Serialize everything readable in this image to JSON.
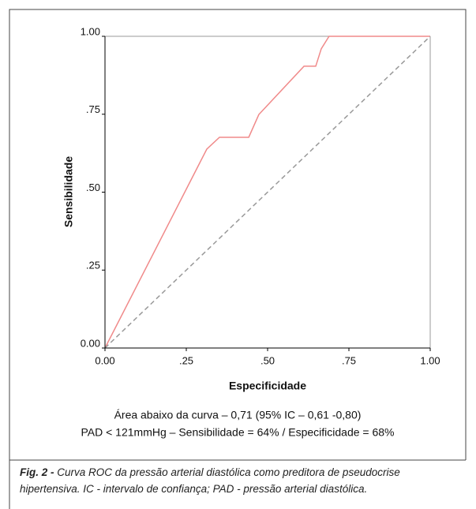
{
  "chart_data": {
    "type": "line",
    "x_label": "Especificidade",
    "y_label": "Sensibilidade",
    "annotations": [
      "Área abaixo da curva – 0,71 (95% IC – 0,61 -0,80)",
      "PAD < 121mmHg – Sensibilidade = 64% / Especificidade = 68%"
    ],
    "series": [
      {
        "color": "#f08a8a",
        "dashed": false,
        "x": [
          0,
          0.313,
          0.352,
          0.442,
          0.473,
          0.612,
          0.648,
          0.665,
          0.689,
          1
        ],
        "values": [
          0,
          0.638,
          0.676,
          0.676,
          0.749,
          0.904,
          0.904,
          0.96,
          1,
          1
        ]
      },
      {
        "color": "#999999",
        "dashed": true,
        "x": [
          0,
          1
        ],
        "values": [
          0,
          1
        ]
      }
    ],
    "xlim": [
      0,
      1
    ],
    "ylim": [
      0,
      1
    ],
    "xticks": [
      {
        "value": 0,
        "label": "0.00"
      },
      {
        "value": 0.25,
        "label": ".25"
      },
      {
        "value": 0.5,
        "label": ".50"
      },
      {
        "value": 0.75,
        "label": ".75"
      },
      {
        "value": 1,
        "label": "1.00"
      }
    ],
    "yticks": [
      {
        "value": 0,
        "label": "0.00"
      },
      {
        "value": 0.25,
        "label": ".25"
      },
      {
        "value": 0.5,
        "label": ".50"
      },
      {
        "value": 0.75,
        "label": ".75"
      },
      {
        "value": 1,
        "label": "1.00"
      }
    ]
  },
  "caption": {
    "label": "Fig. 2 -",
    "text": "Curva ROC da pressão arterial diastólica como preditora de pseudocrise hipertensiva. IC - intervalo de confiança; PAD - pressão arterial diastólica."
  }
}
